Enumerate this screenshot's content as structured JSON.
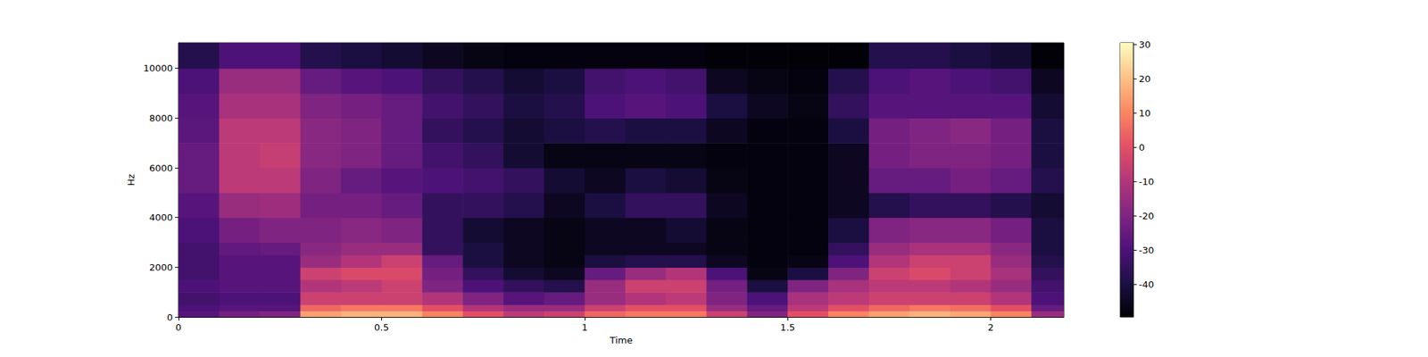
{
  "chart_data": {
    "type": "heatmap",
    "x_label": "Time",
    "y_label": "Hz",
    "xlim": [
      0,
      2.18
    ],
    "xticks": [
      0,
      0.5,
      1,
      1.5,
      2
    ],
    "ylim": [
      0,
      11025
    ],
    "yticks": [
      0,
      2000,
      4000,
      6000,
      8000,
      10000
    ],
    "x_edges": [
      0,
      0.1,
      0.2,
      0.3,
      0.4,
      0.5,
      0.6,
      0.7,
      0.8,
      0.9,
      1.0,
      1.1,
      1.2,
      1.3,
      1.4,
      1.5,
      1.6,
      1.7,
      1.8,
      1.9,
      2.0,
      2.1,
      2.18
    ],
    "y_edges": [
      0,
      250,
      500,
      1000,
      1500,
      2000,
      2500,
      3000,
      4000,
      5000,
      6000,
      7000,
      8000,
      9000,
      10000,
      11025
    ],
    "cells": [
      [
        -28,
        -30,
        -32,
        -30,
        -32,
        -32,
        -32,
        -30,
        -28,
        -25,
        -25,
        -27,
        -28,
        -30,
        -38
      ],
      [
        -22,
        -28,
        -30,
        -28,
        -28,
        -28,
        -26,
        -22,
        -15,
        -8,
        -8,
        -8,
        -12,
        -15,
        -30
      ],
      [
        -20,
        -28,
        -30,
        -28,
        -28,
        -28,
        -25,
        -20,
        -14,
        -8,
        -6,
        -8,
        -12,
        -15,
        -30
      ],
      [
        15,
        5,
        -5,
        -10,
        -5,
        -15,
        -18,
        -20,
        -22,
        -20,
        -18,
        -18,
        -20,
        -25,
        -38
      ],
      [
        18,
        8,
        -5,
        -8,
        -2,
        -10,
        -15,
        -18,
        -22,
        -25,
        -20,
        -20,
        -22,
        -28,
        -40
      ],
      [
        18,
        8,
        -5,
        -5,
        -2,
        -5,
        -15,
        -20,
        -25,
        -28,
        -25,
        -25,
        -25,
        -30,
        -42
      ],
      [
        10,
        0,
        -10,
        -20,
        -22,
        -25,
        -35,
        -35,
        -35,
        -30,
        -32,
        -35,
        -32,
        -35,
        -45
      ],
      [
        0,
        -10,
        -20,
        -30,
        -35,
        -40,
        -40,
        -42,
        -35,
        -32,
        -35,
        -38,
        -35,
        -38,
        -47
      ],
      [
        -8,
        -15,
        -28,
        -35,
        -42,
        -45,
        -45,
        -45,
        -38,
        -35,
        -42,
        -42,
        -40,
        -42,
        -48
      ],
      [
        -5,
        -15,
        -25,
        -38,
        -45,
        -47,
        -47,
        -47,
        -45,
        -42,
        -47,
        -40,
        -38,
        -40,
        -48
      ],
      [
        5,
        -5,
        -15,
        -15,
        -25,
        -40,
        -45,
        -45,
        -40,
        -45,
        -47,
        -38,
        -30,
        -32,
        -48
      ],
      [
        8,
        0,
        -10,
        -5,
        -15,
        -38,
        -45,
        -45,
        -35,
        -40,
        -47,
        -40,
        -28,
        -30,
        -48
      ],
      [
        8,
        0,
        -8,
        -5,
        -10,
        -38,
        -45,
        -42,
        -35,
        -42,
        -47,
        -40,
        -30,
        -32,
        -48
      ],
      [
        -5,
        -15,
        -20,
        -22,
        -30,
        -45,
        -47,
        -47,
        -45,
        -47,
        -48,
        -45,
        -40,
        -45,
        -49
      ],
      [
        -20,
        -25,
        -30,
        -40,
        -47,
        -48,
        -48,
        -48,
        -48,
        -48,
        -48,
        -48,
        -45,
        -47,
        -49
      ],
      [
        0,
        -8,
        -12,
        -20,
        -40,
        -47,
        -48,
        -48,
        -48,
        -48,
        -48,
        -48,
        -47,
        -48,
        -49
      ],
      [
        10,
        0,
        -8,
        -12,
        -20,
        -30,
        -35,
        -40,
        -45,
        -45,
        -45,
        -40,
        -35,
        -38,
        -49
      ],
      [
        15,
        5,
        -5,
        -8,
        -5,
        -10,
        -15,
        -20,
        -38,
        -25,
        -22,
        -22,
        -28,
        -30,
        -38
      ],
      [
        18,
        8,
        -5,
        -8,
        -2,
        -5,
        -12,
        -18,
        -35,
        -25,
        -20,
        -20,
        -28,
        -28,
        -38
      ],
      [
        16,
        6,
        -5,
        -10,
        -5,
        -5,
        -12,
        -18,
        -35,
        -22,
        -20,
        -18,
        -28,
        -30,
        -40
      ],
      [
        10,
        0,
        -10,
        -15,
        -12,
        -15,
        -18,
        -22,
        -38,
        -25,
        -22,
        -22,
        -28,
        -32,
        -42
      ],
      [
        -15,
        -25,
        -30,
        -32,
        -35,
        -38,
        -40,
        -40,
        -42,
        -38,
        -40,
        -40,
        -42,
        -45,
        -49
      ]
    ],
    "colorbar_range": [
      -49.5,
      30.5
    ],
    "colorbar_ticks": [
      -40,
      -30,
      -20,
      -10,
      0,
      10,
      20,
      30
    ]
  }
}
